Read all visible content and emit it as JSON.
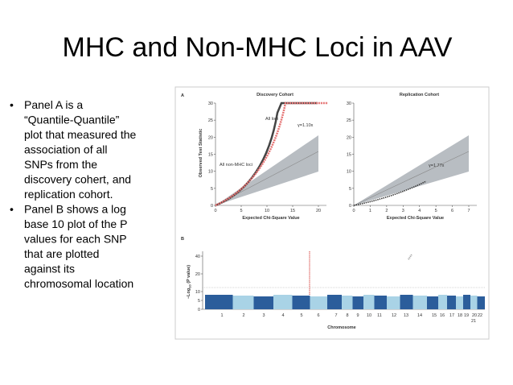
{
  "title": "MHC and Non-MHC Loci in AAV",
  "bullets": [
    "Panel A is a “Quantile-Quantile” plot that measured the association of all SNPs from the discovery cohert, and replication cohort.",
    "Panel B  shows a log base 10 plot of the P values for each SNP that are plotted against its chromosomal location"
  ],
  "figure": {
    "panel_a": {
      "label": "A",
      "y_label": "Observed Test Statistic",
      "plots": [
        {
          "title": "Discovery Cohort",
          "x_label": "Expected Chi-Square Value",
          "xticks": [
            0,
            5,
            10,
            15,
            20
          ],
          "yticks": [
            0,
            5,
            10,
            15,
            20,
            25,
            30
          ],
          "annotations": [
            "All loci",
            "γ=1.10x",
            "All non-MHC loci"
          ]
        },
        {
          "title": "Replication Cohort",
          "x_label": "Expected Chi-Square Value",
          "xticks": [
            0,
            1,
            2,
            3,
            4,
            5,
            6,
            7
          ],
          "yticks": [
            0,
            5,
            10,
            15,
            20,
            25,
            30
          ],
          "annotations": [
            "γ=1.77x"
          ]
        }
      ]
    },
    "panel_b": {
      "label": "B",
      "y_label": {
        "main": "−Log",
        "sub": "10",
        "rest": " (P value)"
      },
      "x_label": "Chromosome",
      "yticks": [
        0,
        5,
        10,
        20,
        40
      ],
      "chromosomes": [
        "1",
        "2",
        "3",
        "4",
        "5",
        "6",
        "7",
        "8",
        "9",
        "10",
        "11",
        "12",
        "13",
        "14",
        "15",
        "16",
        "17",
        "18",
        "19",
        "20",
        "22",
        "21"
      ]
    }
  }
}
